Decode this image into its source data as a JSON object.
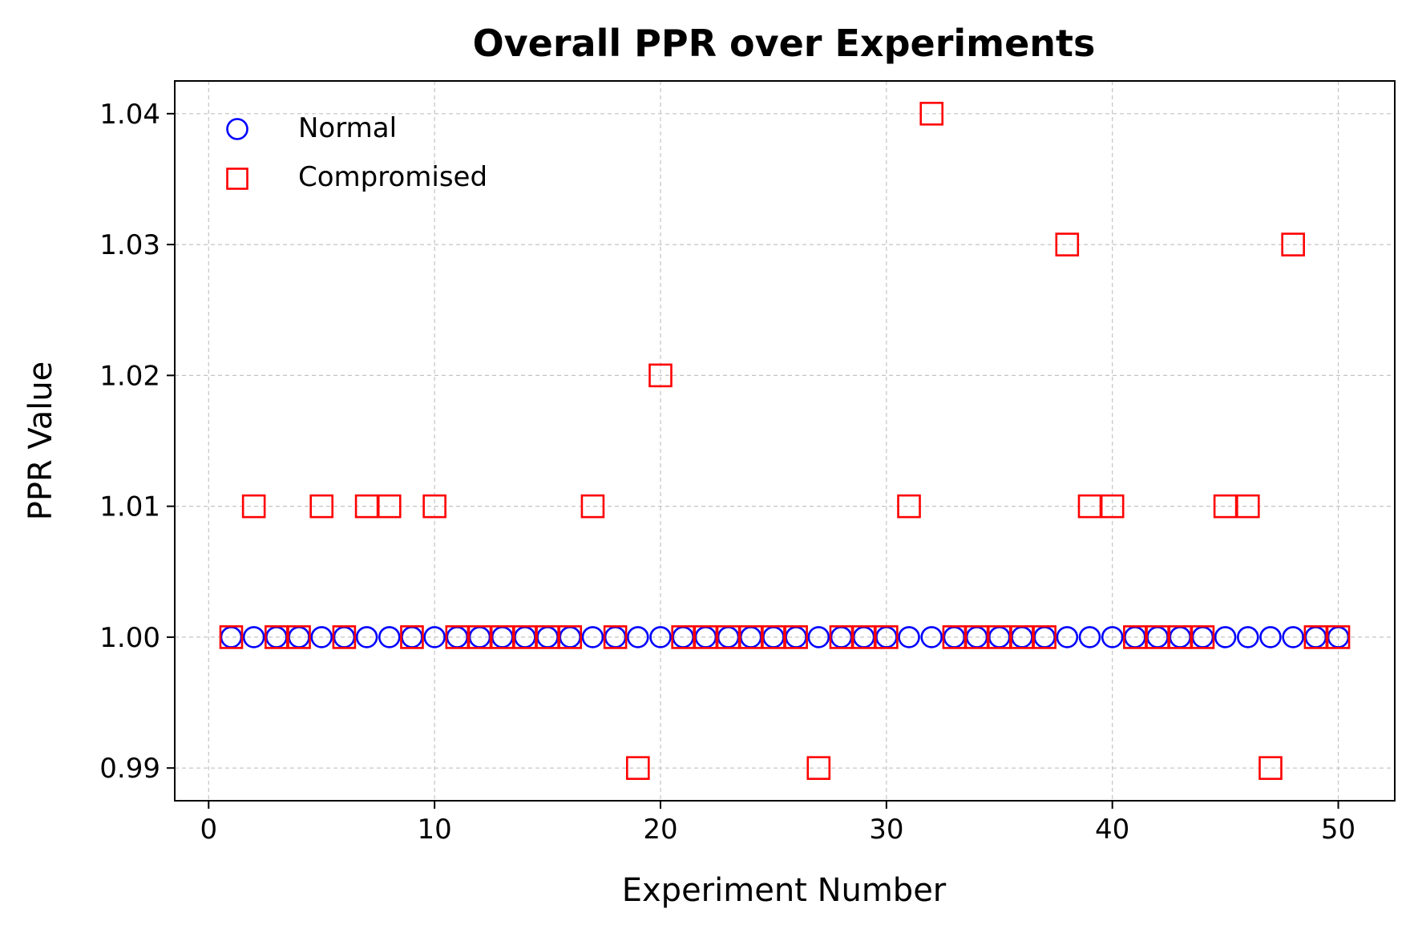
{
  "chart_data": {
    "type": "scatter",
    "title": "Overall PPR over Experiments",
    "xlabel": "Experiment Number",
    "ylabel": "PPR Value",
    "xlim": [
      -1.5,
      52.5
    ],
    "ylim": [
      0.9875,
      1.0425
    ],
    "xticks": [
      0,
      10,
      20,
      30,
      40,
      50
    ],
    "xtick_labels": [
      "0",
      "10",
      "20",
      "30",
      "40",
      "50"
    ],
    "yticks": [
      0.99,
      1.0,
      1.01,
      1.02,
      1.03,
      1.04
    ],
    "ytick_labels": [
      "0.99",
      "1.00",
      "1.01",
      "1.02",
      "1.03",
      "1.04"
    ],
    "grid": true,
    "legend_position": "top-left",
    "x": [
      1,
      2,
      3,
      4,
      5,
      6,
      7,
      8,
      9,
      10,
      11,
      12,
      13,
      14,
      15,
      16,
      17,
      18,
      19,
      20,
      21,
      22,
      23,
      24,
      25,
      26,
      27,
      28,
      29,
      30,
      31,
      32,
      33,
      34,
      35,
      36,
      37,
      38,
      39,
      40,
      41,
      42,
      43,
      44,
      45,
      46,
      47,
      48,
      49,
      50
    ],
    "series": [
      {
        "name": "Normal",
        "marker": "circle",
        "color": "#0000ff",
        "values": [
          1,
          1,
          1,
          1,
          1,
          1,
          1,
          1,
          1,
          1,
          1,
          1,
          1,
          1,
          1,
          1,
          1,
          1,
          1,
          1,
          1,
          1,
          1,
          1,
          1,
          1,
          1,
          1,
          1,
          1,
          1,
          1,
          1,
          1,
          1,
          1,
          1,
          1,
          1,
          1,
          1,
          1,
          1,
          1,
          1,
          1,
          1,
          1,
          1,
          1
        ]
      },
      {
        "name": "Compromised",
        "marker": "square",
        "color": "#ff0000",
        "values": [
          1.0,
          1.01,
          1.0,
          1.0,
          1.01,
          1.0,
          1.01,
          1.01,
          1.0,
          1.01,
          1.0,
          1.0,
          1.0,
          1.0,
          1.0,
          1.0,
          1.01,
          1.0,
          0.99,
          1.02,
          1.0,
          1.0,
          1.0,
          1.0,
          1.0,
          1.0,
          0.99,
          1.0,
          1.0,
          1.0,
          1.01,
          1.04,
          1.0,
          1.0,
          1.0,
          1.0,
          1.0,
          1.03,
          1.01,
          1.01,
          1.0,
          1.0,
          1.0,
          1.0,
          1.01,
          1.01,
          0.99,
          1.03,
          1.0,
          1.0
        ]
      }
    ]
  }
}
